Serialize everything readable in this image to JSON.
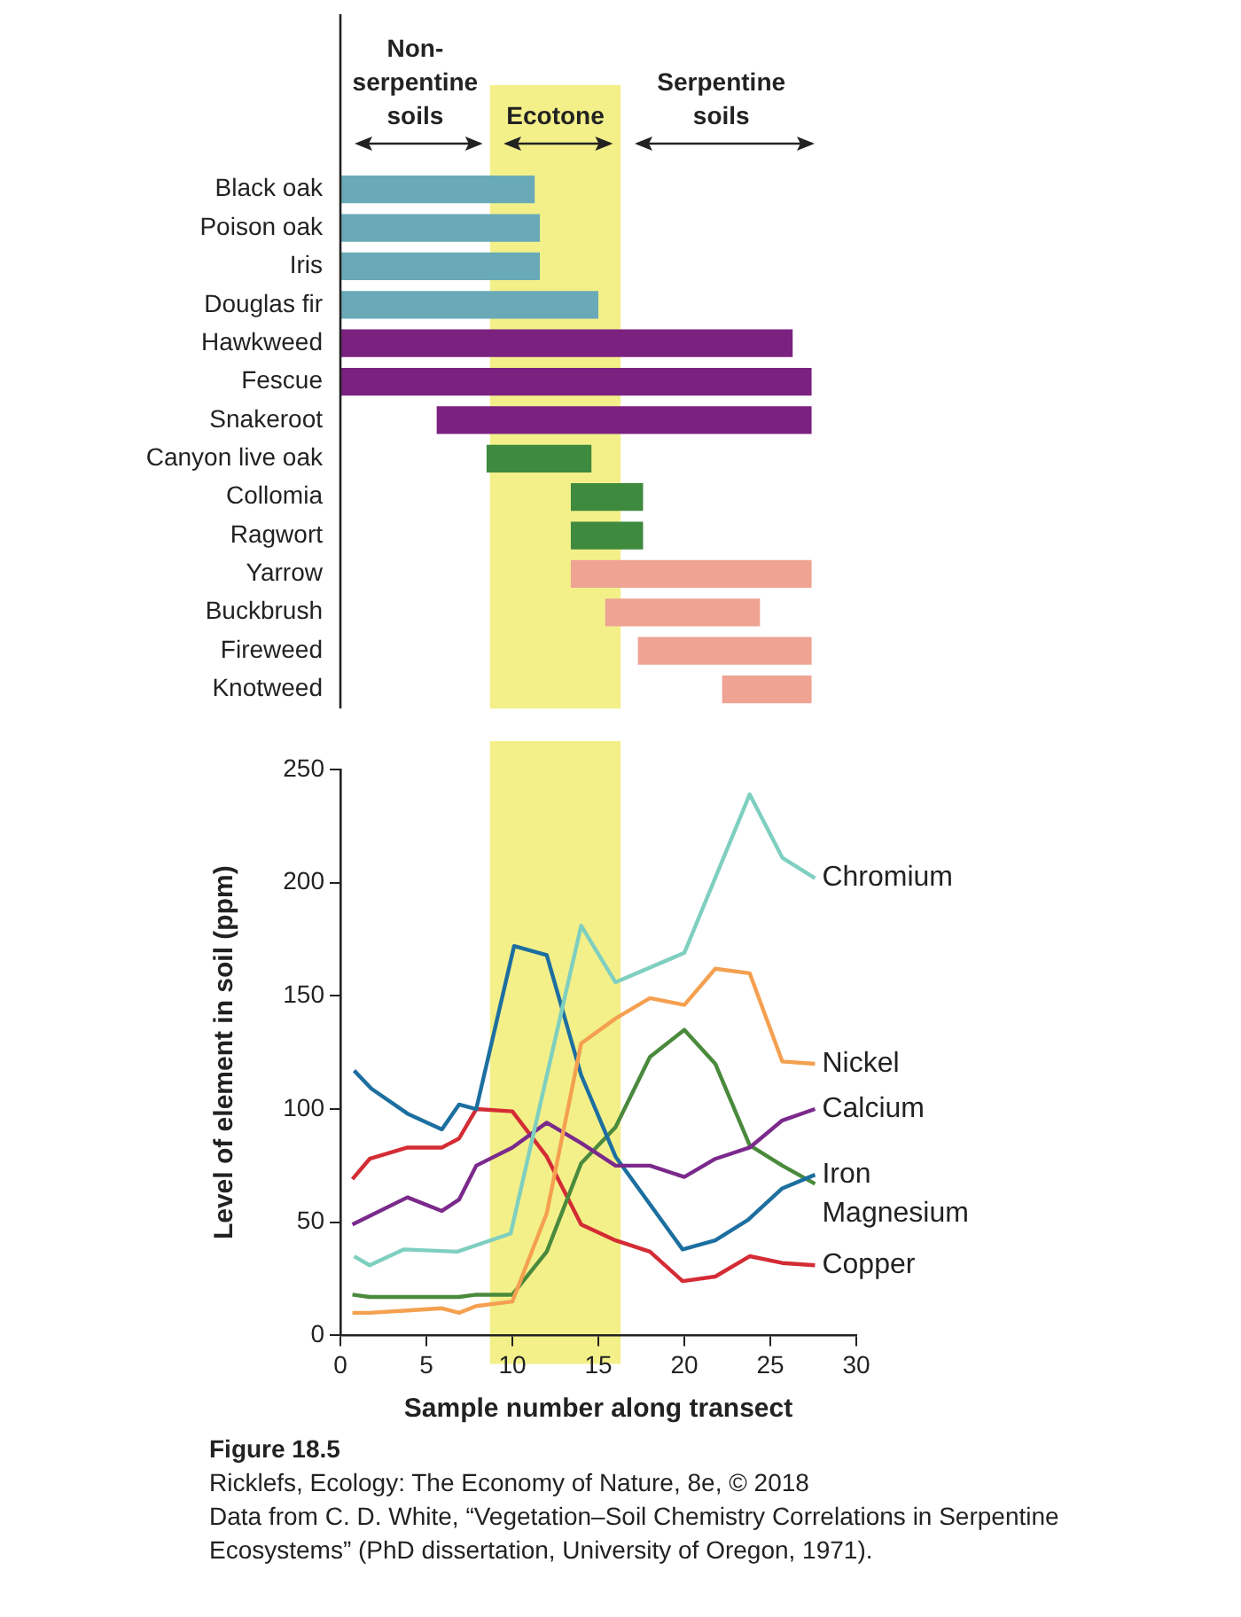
{
  "chart_data": [
    {
      "type": "bar",
      "orientation": "horizontal",
      "categories": [
        "Black oak",
        "Poison oak",
        "Iris",
        "Douglas fir",
        "Hawkweed",
        "Fescue",
        "Snakeroot",
        "Canyon live oak",
        "Collomia",
        "Ragwort",
        "Yarrow",
        "Buckbrush",
        "Fireweed",
        "Knotweed"
      ],
      "base": [
        0,
        0,
        0,
        0,
        0,
        0,
        5.6,
        8.5,
        13.4,
        13.4,
        13.4,
        15.4,
        17.3,
        22.2
      ],
      "values": [
        11.3,
        11.6,
        11.6,
        15.0,
        26.3,
        27.4,
        21.8,
        6.1,
        4.2,
        4.2,
        14.0,
        9.0,
        10.1,
        5.2
      ],
      "colors": [
        "#6aaab8",
        "#6aaab8",
        "#6aaab8",
        "#6aaab8",
        "#7b2180",
        "#7b2180",
        "#7b2180",
        "#3e8a3e",
        "#3e8a3e",
        "#3e8a3e",
        "#eea393",
        "#eea393",
        "#eea393",
        "#eea393"
      ],
      "xlim": [
        0,
        30
      ],
      "tick_labels": "y",
      "grid": false,
      "legend": false,
      "bands": [
        {
          "axis": "x",
          "from": 8.7,
          "to": 16.3,
          "label": "Ecotone",
          "color": "#f3f08a"
        }
      ],
      "annotations": [
        "Non-serpentine soils",
        "Serpentine soils"
      ]
    },
    {
      "type": "line",
      "xlabel": "Sample number along transect",
      "ylabel": "Level of element in soil (ppm)",
      "series": [
        {
          "name": "Chromium",
          "color": "#7fcfc0",
          "x": [
            0.8,
            1.7,
            3.7,
            6.8,
            9.9,
            14.0,
            16.0,
            20.0,
            23.8,
            25.7,
            27.6
          ],
          "values": [
            35,
            31,
            38,
            37,
            45,
            181,
            156,
            169,
            239,
            211,
            202
          ]
        },
        {
          "name": "Nickel",
          "color": "#f4a050",
          "x": [
            0.7,
            1.7,
            3.9,
            5.9,
            6.9,
            7.9,
            10.0,
            12.0,
            14.0,
            16.0,
            18.0,
            20.0,
            21.8,
            23.8,
            25.7,
            27.6
          ],
          "values": [
            10,
            10,
            11,
            12,
            10,
            13,
            15,
            54,
            129,
            140,
            149,
            146,
            162,
            160,
            121,
            120
          ]
        },
        {
          "name": "Calcium",
          "color": "#7b2a8c",
          "x": [
            0.7,
            3.9,
            5.9,
            6.9,
            7.9,
            10.0,
            12.0,
            14.0,
            16.0,
            18.0,
            20.0,
            21.8,
            23.8,
            25.7,
            27.6
          ],
          "values": [
            49,
            61,
            55,
            60,
            75,
            83,
            94,
            85,
            75,
            75,
            70,
            78,
            83,
            95,
            100
          ]
        },
        {
          "name": "Iron",
          "color": "#1d6fa0",
          "x": [
            0.8,
            1.8,
            3.9,
            5.9,
            6.9,
            7.9,
            10.1,
            12.0,
            14.0,
            16.0,
            19.9,
            21.8,
            23.7,
            25.7,
            27.6
          ],
          "values": [
            117,
            109,
            98,
            91,
            102,
            100,
            172,
            168,
            115,
            79,
            38,
            42,
            51,
            65,
            71
          ]
        },
        {
          "name": "Magnesium",
          "color": "#4a8a3c",
          "x": [
            0.7,
            1.7,
            3.9,
            5.9,
            6.9,
            7.9,
            10.0,
            12.0,
            14.0,
            16.0,
            18.0,
            20.0,
            21.8,
            23.8,
            25.7,
            27.6
          ],
          "values": [
            18,
            17,
            17,
            17,
            17,
            18,
            18,
            37,
            76,
            92,
            123,
            135,
            120,
            84,
            75,
            67
          ]
        },
        {
          "name": "Copper",
          "color": "#d42c35",
          "x": [
            0.7,
            1.7,
            3.9,
            5.9,
            6.9,
            7.9,
            10.0,
            12.0,
            14.0,
            16.0,
            18.0,
            19.9,
            21.8,
            23.8,
            25.7,
            27.6
          ],
          "values": [
            69,
            78,
            83,
            83,
            87,
            100,
            99,
            79,
            49,
            42,
            37,
            24,
            26,
            35,
            32,
            31
          ]
        }
      ],
      "xlim": [
        0,
        30
      ],
      "xticks": [
        0,
        5,
        10,
        15,
        20,
        25,
        30
      ],
      "ylim": [
        0,
        250
      ],
      "yticks": [
        0,
        50,
        100,
        150,
        200,
        250
      ],
      "grid": false,
      "legend": false,
      "bands": [
        {
          "axis": "x",
          "from": 8.7,
          "to": 16.3,
          "color": "#f3f08a"
        }
      ],
      "annotations": [
        "Figure 18.5",
        "Ricklefs, Ecology: The Economy of Nature, 8e, © 2018",
        "Data from C. D. White, “Vegetation–Soil Chemistry Correlations in Serpentine Ecosystems” (PhD dissertation, University of Oregon, 1971)."
      ]
    }
  ]
}
